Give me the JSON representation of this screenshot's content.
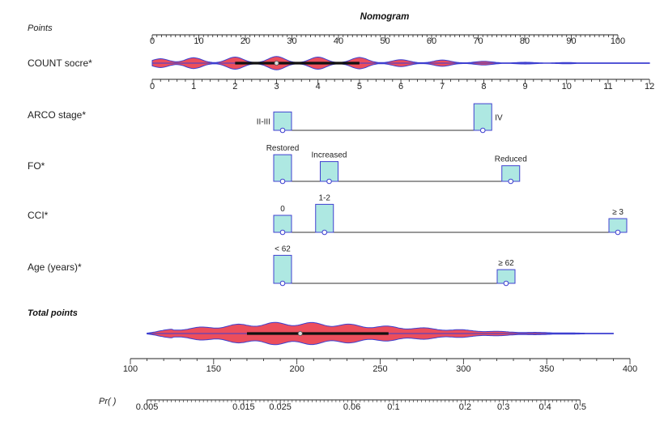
{
  "chart_data": {
    "type": "nomogram",
    "title": "Nomogram",
    "points_axis": {
      "label": "Points",
      "range": [
        0,
        100
      ],
      "ticks": [
        0,
        10,
        20,
        30,
        40,
        50,
        60,
        70,
        80,
        90,
        100
      ]
    },
    "count_score": {
      "label": "COUNT socre*",
      "scale_range": [
        0,
        12
      ],
      "ticks": [
        0,
        1,
        2,
        3,
        4,
        5,
        6,
        7,
        8,
        9,
        10,
        11,
        12
      ],
      "points_per_unit": 8.9,
      "violin_bulges": [
        {
          "value": 0.2,
          "width": 0.65
        },
        {
          "value": 1,
          "width": 0.8
        },
        {
          "value": 2,
          "width": 0.9
        },
        {
          "value": 3,
          "width": 1.0
        },
        {
          "value": 4,
          "width": 0.9
        },
        {
          "value": 5,
          "width": 0.85
        },
        {
          "value": 6,
          "width": 0.5
        },
        {
          "value": 7,
          "width": 0.45
        },
        {
          "value": 8,
          "width": 0.25
        },
        {
          "value": 9,
          "width": 0.1
        },
        {
          "value": 10,
          "width": 0.06
        }
      ],
      "iqr": [
        2,
        5
      ],
      "median": 3
    },
    "arco_stage": {
      "label": "ARCO stage*",
      "categories": [
        {
          "name": "II-III",
          "points": 28,
          "freq": 0.55,
          "label_pos": "left"
        },
        {
          "name": "IV",
          "points": 71,
          "freq": 0.85,
          "label_pos": "right"
        }
      ]
    },
    "fo": {
      "label": "FO*",
      "categories": [
        {
          "name": "Restored",
          "points": 28,
          "freq": 0.85,
          "label_pos": "above"
        },
        {
          "name": "Increased",
          "points": 38,
          "freq": 0.6,
          "label_pos": "above"
        },
        {
          "name": "Reduced",
          "points": 77,
          "freq": 0.45,
          "label_pos": "above"
        }
      ]
    },
    "cci": {
      "label": "CCI*",
      "categories": [
        {
          "name": "0",
          "points": 28,
          "freq": 0.5,
          "label_pos": "above"
        },
        {
          "name": "1-2",
          "points": 37,
          "freq": 0.9,
          "label_pos": "above"
        },
        {
          "name": "≥ 3",
          "points": 100,
          "freq": 0.38,
          "label_pos": "above"
        }
      ]
    },
    "age": {
      "label": "Age (years)*",
      "categories": [
        {
          "name": "< 62",
          "points": 28,
          "freq": 0.9,
          "label_pos": "above"
        },
        {
          "name": "≥ 62",
          "points": 76,
          "freq": 0.38,
          "label_pos": "above"
        }
      ]
    },
    "total_points": {
      "label": "Total points",
      "range": [
        100,
        400
      ],
      "ticks": [
        100,
        150,
        200,
        250,
        300,
        350,
        400
      ],
      "violin_span": [
        110,
        390
      ],
      "iqr": [
        170,
        255
      ],
      "median": 202
    },
    "probability": {
      "label": "Pr( )",
      "labeled_ticks": [
        0.005,
        0.015,
        0.025,
        0.06,
        0.1,
        0.2,
        0.3,
        0.4,
        0.5
      ],
      "labeled_ticks_text": [
        "0.005",
        "0.015",
        "0.025",
        "0.06",
        "0.1",
        "0.2",
        "0.3",
        "0.4",
        "0.5"
      ],
      "tick_total_points": [
        110,
        168,
        190,
        233,
        258,
        301,
        324,
        349,
        370
      ]
    },
    "colors": {
      "violin_fill": "#ec4e5c",
      "violin_stroke": "#3d3fd0",
      "bar_fill": "#aee8e2",
      "bar_stroke": "#4040d0",
      "point_stroke": "#3d3fd0",
      "line": "#333333"
    }
  }
}
